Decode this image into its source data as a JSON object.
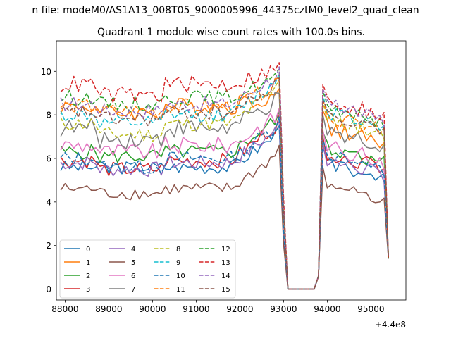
{
  "suptitle": "n file: modeM0/AS1A13_008T05_9000005996_44375cztM0_level2_quad_clean",
  "chart_data": {
    "type": "line",
    "title": "Quadrant 1 module wise count rates with 100.0s bins.",
    "xlabel": "",
    "ylabel": "",
    "offset_label": "+4.4e8",
    "xlim": [
      87800,
      95800
    ],
    "ylim": [
      -0.5,
      11.4
    ],
    "xticks": [
      88000,
      89000,
      90000,
      91000,
      92000,
      93000,
      94000,
      95000
    ],
    "yticks": [
      0,
      2,
      4,
      6,
      8,
      10
    ],
    "grid": false,
    "legend_position": "lower-left",
    "legend_columns": 4,
    "series": [
      {
        "name": "0",
        "color": "#1f77b4",
        "dash": "solid",
        "base": 5.6,
        "dip": 0.0,
        "wave": 0,
        "amp": 0.3,
        "edge": 6.1
      },
      {
        "name": "1",
        "color": "#ff7f0e",
        "dash": "solid",
        "base": 8.4,
        "dip": 0.3,
        "wave": 1,
        "amp": 0.4,
        "edge": 7.8
      },
      {
        "name": "2",
        "color": "#2ca02c",
        "dash": "solid",
        "base": 6.3,
        "dip": 0.2,
        "wave": 2,
        "amp": 0.35,
        "edge": 6.8
      },
      {
        "name": "3",
        "color": "#d62728",
        "dash": "solid",
        "base": 5.9,
        "dip": 0.4,
        "wave": 3,
        "amp": 0.35,
        "edge": 6.6
      },
      {
        "name": "4",
        "color": "#9467bd",
        "dash": "solid",
        "base": 5.8,
        "dip": 0.3,
        "wave": 4,
        "amp": 0.35,
        "edge": 6.3
      },
      {
        "name": "5",
        "color": "#8c564b",
        "dash": "solid",
        "base": 4.6,
        "dip": 0.2,
        "wave": 5,
        "amp": 0.3,
        "edge": 5.2
      },
      {
        "name": "6",
        "color": "#e377c2",
        "dash": "solid",
        "base": 6.6,
        "dip": 0.3,
        "wave": 6,
        "amp": 0.4,
        "edge": 6.9
      },
      {
        "name": "7",
        "color": "#7f7f7f",
        "dash": "solid",
        "base": 7.4,
        "dip": 0.5,
        "wave": 7,
        "amp": 0.45,
        "edge": 7.6
      },
      {
        "name": "8",
        "color": "#bcbd22",
        "dash": "dashed",
        "base": 7.6,
        "dip": 0.5,
        "wave": 8,
        "amp": 0.35,
        "edge": 8.2
      },
      {
        "name": "9",
        "color": "#17becf",
        "dash": "dashed",
        "base": 8.0,
        "dip": 0.4,
        "wave": 9,
        "amp": 0.35,
        "edge": 8.5
      },
      {
        "name": "10",
        "color": "#1f77b4",
        "dash": "dashed",
        "base": 6.0,
        "dip": 0.4,
        "wave": 10,
        "amp": 0.35,
        "edge": 6.5
      },
      {
        "name": "11",
        "color": "#ff7f0e",
        "dash": "dashed",
        "base": 8.4,
        "dip": 0.2,
        "wave": 11,
        "amp": 0.35,
        "edge": 8.3
      },
      {
        "name": "12",
        "color": "#2ca02c",
        "dash": "dashed",
        "base": 8.8,
        "dip": 0.3,
        "wave": 12,
        "amp": 0.35,
        "edge": 8.7
      },
      {
        "name": "13",
        "color": "#d62728",
        "dash": "dashed",
        "base": 9.4,
        "dip": 0.5,
        "wave": 13,
        "amp": 0.4,
        "edge": 9.0
      },
      {
        "name": "14",
        "color": "#9467bd",
        "dash": "dashed",
        "base": 8.5,
        "dip": 0.3,
        "wave": 14,
        "amp": 0.35,
        "edge": 8.8
      },
      {
        "name": "15",
        "color": "#8c564b",
        "dash": "dashed",
        "base": 8.1,
        "dip": 0.3,
        "wave": 15,
        "amp": 0.35,
        "edge": 8.3
      }
    ]
  }
}
